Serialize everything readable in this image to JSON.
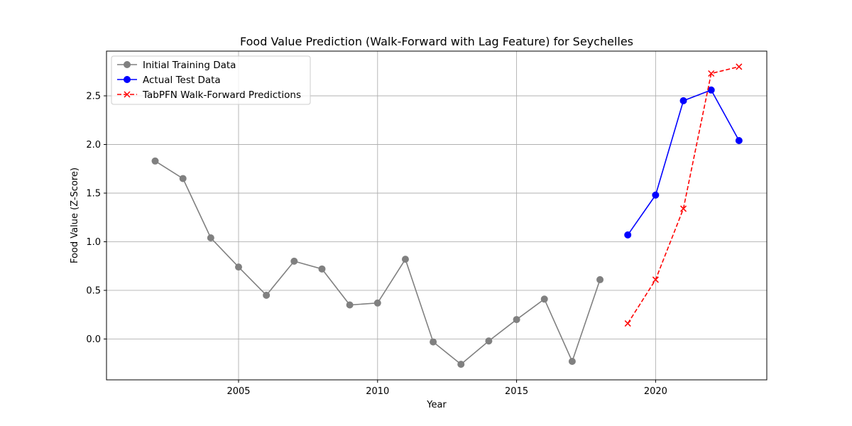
{
  "chart_data": {
    "type": "line",
    "title": "Food Value Prediction (Walk-Forward with Lag Feature) for Seychelles",
    "xlabel": "Year",
    "ylabel": "Food Value (Z-Score)",
    "xlim": [
      2000.25,
      2024.0
    ],
    "ylim": [
      -0.42,
      2.96
    ],
    "x_ticks": [
      2005,
      2010,
      2015,
      2020
    ],
    "x_tick_labels": [
      "2005",
      "2010",
      "2015",
      "2020"
    ],
    "y_ticks": [
      0.0,
      0.5,
      1.0,
      1.5,
      2.0,
      2.5
    ],
    "y_tick_labels": [
      "0.0",
      "0.5",
      "1.0",
      "1.5",
      "2.0",
      "2.5"
    ],
    "grid": true,
    "legend_position": "top-left",
    "series": [
      {
        "name": "Initial Training Data",
        "color": "#808080",
        "style": "solid",
        "marker": "circle",
        "x": [
          2002,
          2003,
          2004,
          2005,
          2006,
          2007,
          2008,
          2009,
          2010,
          2011,
          2012,
          2013,
          2014,
          2015,
          2016,
          2017,
          2018
        ],
        "y": [
          1.83,
          1.65,
          1.04,
          0.74,
          0.45,
          0.8,
          0.72,
          0.35,
          0.37,
          0.82,
          -0.03,
          -0.26,
          -0.02,
          0.2,
          0.41,
          -0.23,
          0.61
        ]
      },
      {
        "name": "Actual Test Data",
        "color": "#0000ff",
        "style": "solid",
        "marker": "circle",
        "x": [
          2019,
          2020,
          2021,
          2022,
          2023
        ],
        "y": [
          1.07,
          1.48,
          2.45,
          2.56,
          2.04
        ]
      },
      {
        "name": "TabPFN Walk-Forward Predictions",
        "color": "#ff0000",
        "style": "dashed",
        "marker": "x",
        "x": [
          2019,
          2020,
          2021,
          2022,
          2023
        ],
        "y": [
          0.16,
          0.61,
          1.34,
          2.73,
          2.8
        ]
      }
    ]
  }
}
